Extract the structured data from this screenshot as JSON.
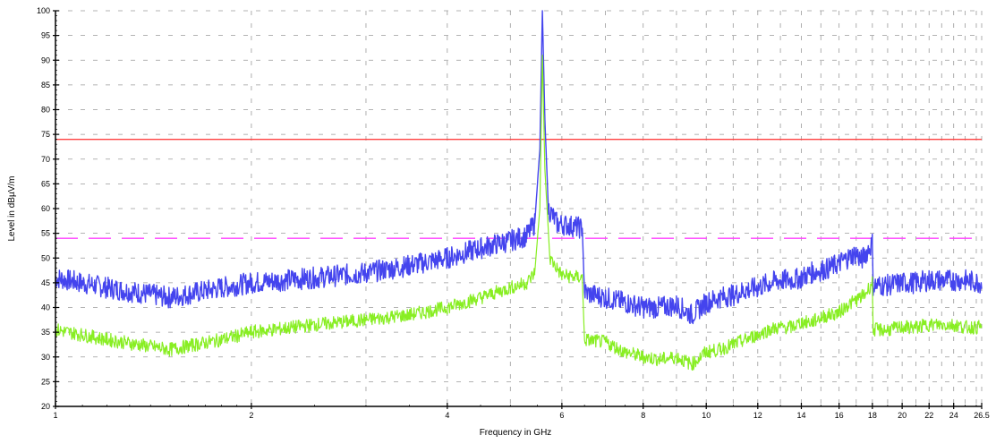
{
  "chart_data": {
    "type": "line",
    "xlabel": "Frequency in GHz",
    "ylabel": "Level in dBµV/m",
    "xlim": [
      1,
      26.5
    ],
    "ylim": [
      20,
      100
    ],
    "grid": true,
    "x_ticks": [
      1,
      2,
      4,
      6,
      8,
      10,
      12,
      14,
      16,
      18,
      20,
      22,
      24,
      26.5
    ],
    "x_tick_labels": [
      "1",
      "2",
      "4",
      "6",
      "8",
      "10",
      "12",
      "14",
      "16",
      "18",
      "20",
      "22",
      "24",
      "26.5"
    ],
    "y_ticks": [
      20,
      25,
      30,
      35,
      40,
      45,
      50,
      55,
      60,
      65,
      70,
      75,
      80,
      85,
      90,
      95,
      100
    ],
    "y_tick_labels": [
      "20",
      "25",
      "30",
      "35",
      "40",
      "45",
      "50",
      "55",
      "60",
      "65",
      "70",
      "75",
      "80",
      "85",
      "90",
      "95",
      "100"
    ],
    "limit_lines": [
      {
        "value": 74,
        "color": "#ff4040",
        "style": "solid"
      },
      {
        "value": 54,
        "color": "#ff40ff",
        "style": "dashed"
      }
    ],
    "series": [
      {
        "color": "#4444ee",
        "points": [
          [
            1.0,
            46
          ],
          [
            1.2,
            44
          ],
          [
            1.5,
            42
          ],
          [
            1.8,
            44
          ],
          [
            2.0,
            45
          ],
          [
            2.5,
            46
          ],
          [
            3.0,
            47
          ],
          [
            3.5,
            48.5
          ],
          [
            4.0,
            50
          ],
          [
            4.5,
            52
          ],
          [
            5.0,
            53.5
          ],
          [
            5.3,
            54.5
          ],
          [
            5.45,
            57
          ],
          [
            5.55,
            72
          ],
          [
            5.6,
            100
          ],
          [
            5.65,
            78
          ],
          [
            5.72,
            60
          ],
          [
            5.9,
            57
          ],
          [
            6.2,
            56.5
          ],
          [
            6.45,
            56
          ],
          [
            6.5,
            43
          ],
          [
            7.0,
            42
          ],
          [
            7.5,
            41
          ],
          [
            8.0,
            40
          ],
          [
            8.5,
            40
          ],
          [
            9.0,
            40.5
          ],
          [
            9.5,
            38.5
          ],
          [
            10.0,
            41
          ],
          [
            10.5,
            42
          ],
          [
            11.0,
            42.5
          ],
          [
            11.5,
            43.5
          ],
          [
            12.0,
            44
          ],
          [
            12.5,
            45
          ],
          [
            13.0,
            45.5
          ],
          [
            13.5,
            45.5
          ],
          [
            14.0,
            46
          ],
          [
            14.5,
            47
          ],
          [
            15.0,
            47.5
          ],
          [
            15.5,
            48
          ],
          [
            16.0,
            49
          ],
          [
            16.5,
            50
          ],
          [
            17.0,
            51
          ],
          [
            17.3,
            49.5
          ],
          [
            17.6,
            51
          ],
          [
            18.0,
            53
          ],
          [
            18.05,
            44.5
          ],
          [
            19.0,
            44.5
          ],
          [
            20.0,
            45
          ],
          [
            21.0,
            45
          ],
          [
            22.0,
            45.5
          ],
          [
            23.0,
            45.5
          ],
          [
            24.0,
            45.5
          ],
          [
            25.0,
            45.5
          ],
          [
            26.5,
            45
          ]
        ]
      },
      {
        "color": "#88ee22",
        "points": [
          [
            1.0,
            35.5
          ],
          [
            1.2,
            33.5
          ],
          [
            1.5,
            31.5
          ],
          [
            1.8,
            33.5
          ],
          [
            2.0,
            35
          ],
          [
            2.5,
            36.5
          ],
          [
            3.0,
            37.5
          ],
          [
            3.5,
            38.5
          ],
          [
            4.0,
            40
          ],
          [
            4.5,
            42
          ],
          [
            5.0,
            44
          ],
          [
            5.3,
            45
          ],
          [
            5.45,
            47
          ],
          [
            5.55,
            60
          ],
          [
            5.6,
            91
          ],
          [
            5.65,
            68
          ],
          [
            5.75,
            50
          ],
          [
            6.0,
            46.5
          ],
          [
            6.45,
            46
          ],
          [
            6.5,
            33.5
          ],
          [
            7.0,
            33
          ],
          [
            7.5,
            31
          ],
          [
            8.0,
            30
          ],
          [
            8.5,
            29.5
          ],
          [
            9.0,
            30
          ],
          [
            9.5,
            28.5
          ],
          [
            10.0,
            31
          ],
          [
            10.5,
            31.5
          ],
          [
            11.0,
            32.5
          ],
          [
            11.5,
            33.5
          ],
          [
            12.0,
            34.5
          ],
          [
            12.5,
            35.5
          ],
          [
            13.0,
            36
          ],
          [
            13.5,
            36
          ],
          [
            14.0,
            37
          ],
          [
            14.5,
            37
          ],
          [
            15.0,
            38
          ],
          [
            15.5,
            38.5
          ],
          [
            16.0,
            39
          ],
          [
            16.5,
            40.5
          ],
          [
            17.0,
            41.5
          ],
          [
            17.5,
            42.5
          ],
          [
            18.0,
            45
          ],
          [
            18.05,
            35.5
          ],
          [
            19.0,
            35.5
          ],
          [
            20.0,
            36
          ],
          [
            21.0,
            36
          ],
          [
            22.0,
            36.5
          ],
          [
            23.0,
            36.5
          ],
          [
            24.0,
            36.5
          ],
          [
            25.0,
            36
          ],
          [
            26.5,
            36
          ]
        ]
      }
    ]
  }
}
